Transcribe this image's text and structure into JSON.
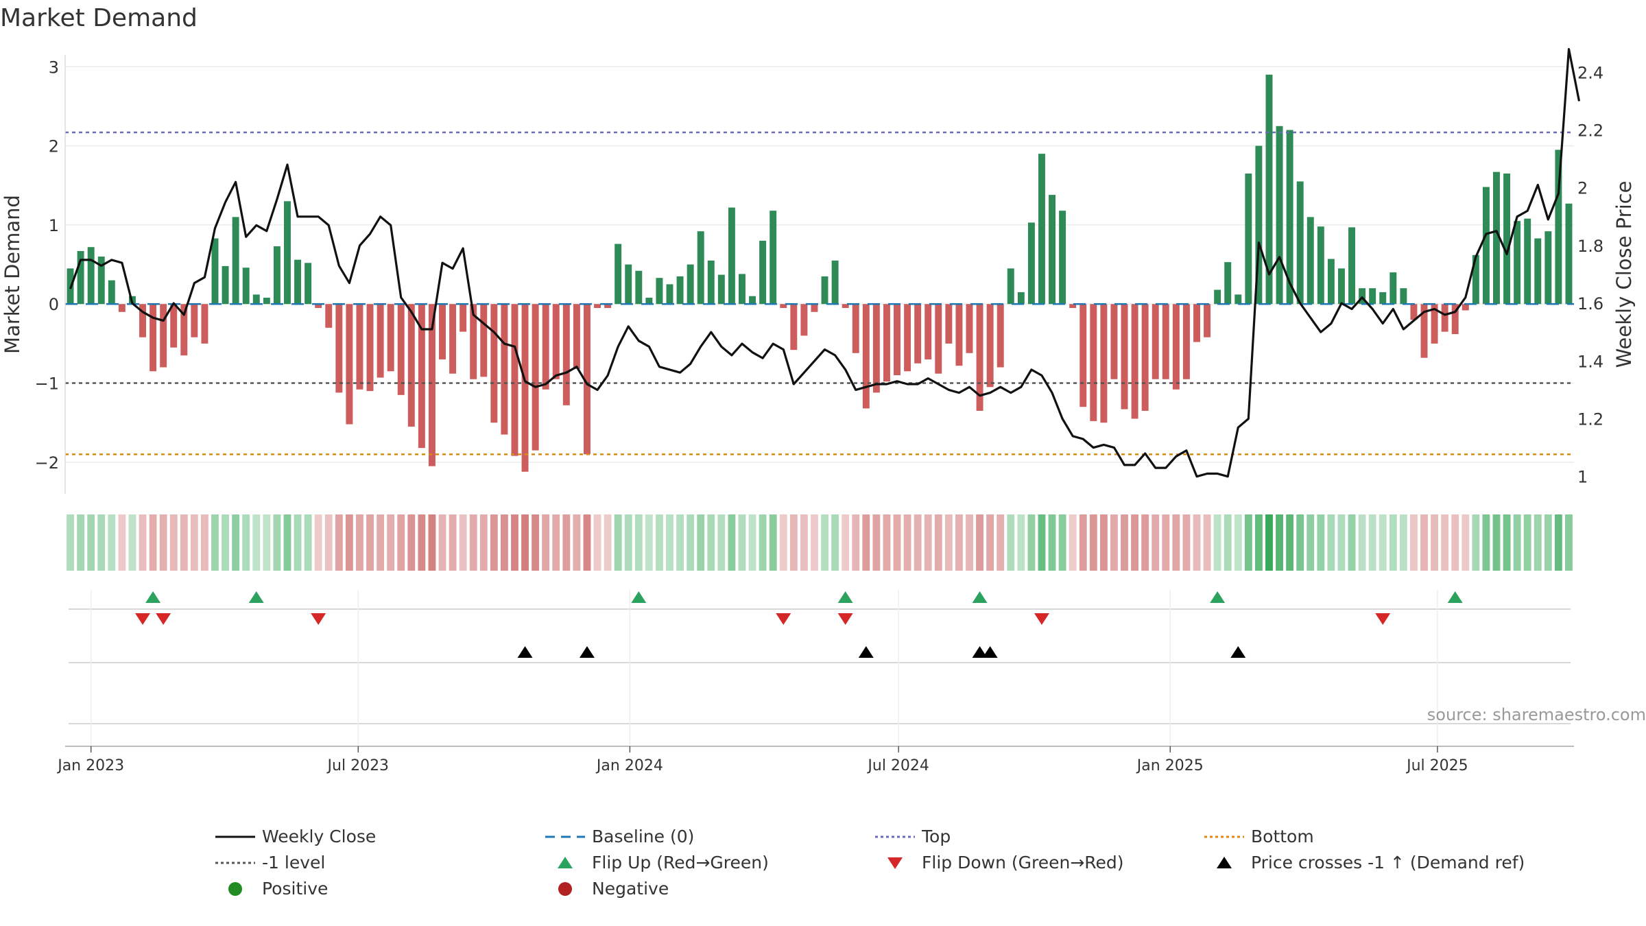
{
  "chart_data": {
    "type": "bar",
    "title": "Market Demand",
    "ylabel": "Market Demand",
    "y2label": "Weekly Close Price",
    "ylim": [
      -2.4,
      3.15
    ],
    "y2lim": [
      0.94,
      2.46
    ],
    "yticks": [
      -2,
      -1,
      0,
      1,
      2,
      3
    ],
    "y2ticks": [
      1,
      1.2,
      1.4,
      1.6,
      1.8,
      2,
      2.2,
      2.4
    ],
    "xticks": [
      "Jan 2023",
      "Jul 2023",
      "Jan 2024",
      "Jul 2024",
      "Jan 2025",
      "Jul 2025"
    ],
    "reference_lines": {
      "top": 2.17,
      "bottom": -1.9,
      "minus_one": -1,
      "baseline": 0
    },
    "demand": [
      0.45,
      0.67,
      0.72,
      0.6,
      0.3,
      -0.1,
      0.1,
      -0.42,
      -0.85,
      -0.8,
      -0.55,
      -0.65,
      -0.42,
      -0.5,
      0.83,
      0.48,
      1.1,
      0.46,
      0.12,
      0.08,
      0.73,
      1.3,
      0.56,
      0.52,
      -0.05,
      -0.3,
      -1.12,
      -1.52,
      -1.08,
      -1.1,
      -0.93,
      -0.85,
      -1.15,
      -1.55,
      -1.82,
      -2.05,
      -0.7,
      -0.88,
      -0.35,
      -0.95,
      -0.92,
      -1.5,
      -1.65,
      -1.92,
      -2.12,
      -1.85,
      -1.08,
      -0.95,
      -1.28,
      -0.82,
      -1.9,
      -0.05,
      -0.05,
      0.76,
      0.5,
      0.42,
      0.08,
      0.33,
      0.25,
      0.35,
      0.5,
      0.92,
      0.55,
      0.37,
      1.22,
      0.38,
      0.1,
      0.8,
      1.18,
      -0.05,
      -0.58,
      -0.4,
      -0.1,
      0.35,
      0.55,
      -0.05,
      -0.62,
      -1.32,
      -1.12,
      -0.98,
      -0.9,
      -0.85,
      -0.75,
      -0.7,
      -0.88,
      -0.5,
      -0.78,
      -0.62,
      -1.35,
      -1.05,
      -0.8,
      0.45,
      0.15,
      1.03,
      1.9,
      1.38,
      1.18,
      -0.05,
      -1.3,
      -1.48,
      -1.5,
      -0.95,
      -1.33,
      -1.45,
      -1.35,
      -0.95,
      -0.95,
      -1.08,
      -0.95,
      -0.48,
      -0.42,
      0.18,
      0.53,
      0.12,
      1.65,
      2.0,
      2.9,
      2.25,
      2.2,
      1.55,
      1.1,
      0.98,
      0.57,
      0.45,
      0.97,
      0.2,
      0.2,
      0.15,
      0.4,
      0.2,
      -0.2,
      -0.68,
      -0.5,
      -0.35,
      -0.38,
      -0.08,
      0.62,
      1.48,
      1.67,
      1.65,
      1.05,
      1.08,
      0.83,
      0.92,
      1.95,
      1.27
    ],
    "weekly_close": [
      1.65,
      1.75,
      1.75,
      1.73,
      1.75,
      1.74,
      1.6,
      1.57,
      1.55,
      1.54,
      1.6,
      1.56,
      1.67,
      1.69,
      1.86,
      1.95,
      2.02,
      1.83,
      1.87,
      1.85,
      1.96,
      2.08,
      1.9,
      1.9,
      1.9,
      1.87,
      1.73,
      1.67,
      1.8,
      1.84,
      1.9,
      1.87,
      1.62,
      1.57,
      1.51,
      1.51,
      1.74,
      1.72,
      1.79,
      1.56,
      1.53,
      1.5,
      1.46,
      1.45,
      1.33,
      1.31,
      1.32,
      1.35,
      1.36,
      1.38,
      1.32,
      1.3,
      1.35,
      1.45,
      1.52,
      1.47,
      1.45,
      1.38,
      1.37,
      1.36,
      1.39,
      1.45,
      1.5,
      1.45,
      1.42,
      1.46,
      1.43,
      1.41,
      1.46,
      1.44,
      1.32,
      1.36,
      1.4,
      1.44,
      1.42,
      1.37,
      1.3,
      1.31,
      1.32,
      1.32,
      1.33,
      1.32,
      1.32,
      1.34,
      1.32,
      1.3,
      1.29,
      1.31,
      1.28,
      1.29,
      1.31,
      1.29,
      1.31,
      1.37,
      1.35,
      1.29,
      1.2,
      1.14,
      1.13,
      1.1,
      1.11,
      1.1,
      1.04,
      1.04,
      1.08,
      1.03,
      1.03,
      1.07,
      1.09,
      1.0,
      1.01,
      1.01,
      1.0,
      1.17,
      1.2,
      1.81,
      1.7,
      1.76,
      1.67,
      1.6,
      1.55,
      1.5,
      1.53,
      1.6,
      1.58,
      1.62,
      1.58,
      1.53,
      1.58,
      1.51,
      1.54,
      1.57,
      1.58,
      1.56,
      1.57,
      1.62,
      1.76,
      1.84,
      1.85,
      1.77,
      1.9,
      1.92,
      2.01,
      1.89,
      1.98,
      2.48,
      2.3
    ],
    "date_start": "2022-12-18",
    "week_days": 7,
    "flip_up_dates": [
      "2023-02-12",
      "2023-04-23",
      "2024-01-07",
      "2024-05-26",
      "2024-08-25",
      "2025-02-02",
      "2025-07-13"
    ],
    "flip_down_dates": [
      "2023-02-05",
      "2023-02-19",
      "2023-06-04",
      "2024-04-14",
      "2024-05-26",
      "2024-10-06",
      "2025-05-25"
    ],
    "price_cross_dates": [
      "2023-10-22",
      "2023-12-03",
      "2024-06-09",
      "2024-08-25",
      "2024-09-01",
      "2025-02-16"
    ],
    "source": "source: sharemaestro.com",
    "colors": {
      "positive": "#2e8b57",
      "negative": "#cd5c5c",
      "line": "#111111",
      "baseline": "#1f77b4",
      "top": "#6b6bb8",
      "bottom": "#d88a14",
      "minus_one": "#555555",
      "flip_up": "#2ca25f",
      "flip_down": "#d62728",
      "cross": "#000000",
      "legend_positive": "#228b22",
      "legend_negative": "#b22222"
    },
    "legend": [
      {
        "label": "Weekly Close",
        "symbol": "solid-line"
      },
      {
        "label": "Baseline (0)",
        "symbol": "dashed-line"
      },
      {
        "label": "Top",
        "symbol": "dotted-line-top"
      },
      {
        "label": "Bottom",
        "symbol": "dotted-line-bottom"
      },
      {
        "label": "-1 level",
        "symbol": "dotted-line-gray"
      },
      {
        "label": "Flip Up (Red→Green)",
        "symbol": "triangle-up-green"
      },
      {
        "label": "Flip Down (Green→Red)",
        "symbol": "triangle-down-red"
      },
      {
        "label": "Price crosses -1 ↑ (Demand ref)",
        "symbol": "triangle-up-black"
      },
      {
        "label": "Positive",
        "symbol": "dot-green"
      },
      {
        "label": "Negative",
        "symbol": "dot-red"
      }
    ]
  }
}
